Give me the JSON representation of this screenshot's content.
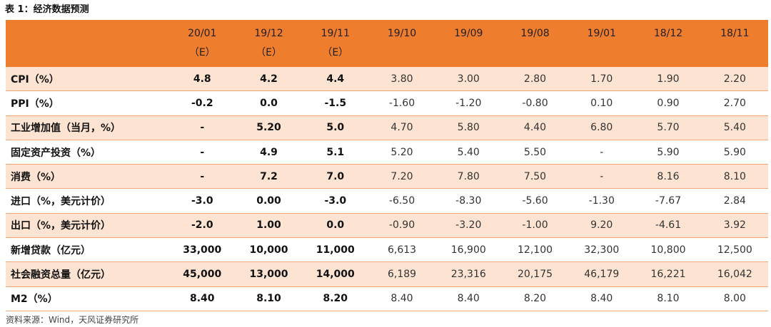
{
  "title": "表 1：经济数据预测",
  "header": {
    "corner": "",
    "columns": [
      {
        "period": "20/01",
        "note": "（E）"
      },
      {
        "period": "19/12",
        "note": "（E）"
      },
      {
        "period": "19/11",
        "note": "（E）"
      },
      {
        "period": "19/10",
        "note": ""
      },
      {
        "period": "19/09",
        "note": ""
      },
      {
        "period": "19/08",
        "note": ""
      },
      {
        "period": "19/01",
        "note": ""
      },
      {
        "period": "18/12",
        "note": ""
      },
      {
        "period": "18/11",
        "note": ""
      }
    ]
  },
  "forecast_column_count": 3,
  "rows": [
    {
      "label": "CPI（%）",
      "values": [
        "4.8",
        "4.2",
        "4.4",
        "3.80",
        "3.00",
        "2.80",
        "1.70",
        "1.90",
        "2.20"
      ]
    },
    {
      "label": "PPI（%）",
      "values": [
        "-0.2",
        "0.0",
        "-1.5",
        "-1.60",
        "-1.20",
        "-0.80",
        "0.10",
        "0.90",
        "2.70"
      ]
    },
    {
      "label": "工业增加值（当月，%）",
      "values": [
        "-",
        "5.20",
        "5.0",
        "4.70",
        "5.80",
        "4.40",
        "6.80",
        "5.70",
        "5.40"
      ]
    },
    {
      "label": "固定资产投资（%）",
      "values": [
        "-",
        "4.9",
        "5.1",
        "5.20",
        "5.40",
        "5.50",
        "-",
        "5.90",
        "5.90"
      ]
    },
    {
      "label": "消费（%）",
      "values": [
        "-",
        "7.2",
        "7.0",
        "7.20",
        "7.80",
        "7.50",
        "-",
        "8.16",
        "8.10"
      ]
    },
    {
      "label": "进口（%，美元计价）",
      "values": [
        "-3.0",
        "0.00",
        "-3.0",
        "-6.50",
        "-8.30",
        "-5.60",
        "-1.30",
        "-7.67",
        "2.84"
      ]
    },
    {
      "label": "出口（%，美元计价）",
      "values": [
        "-2.0",
        "1.00",
        "0.0",
        "-0.90",
        "-3.20",
        "-1.00",
        "9.20",
        "-4.61",
        "3.92"
      ]
    },
    {
      "label": "新增贷款（亿元）",
      "values": [
        "33,000",
        "10,000",
        "11,000",
        "6,613",
        "16,900",
        "12,100",
        "32,300",
        "10,800",
        "12,500"
      ]
    },
    {
      "label": "社会融资总量（亿元）",
      "values": [
        "45,000",
        "13,000",
        "14,000",
        "6,189",
        "23,316",
        "20,175",
        "46,179",
        "16,221",
        "16,042"
      ]
    },
    {
      "label": "M2（%）",
      "values": [
        "8.40",
        "8.10",
        "8.20",
        "8.40",
        "8.40",
        "8.20",
        "8.40",
        "8.10",
        "8.00"
      ]
    }
  ],
  "source": "资料来源：Wind，天风证券研究所",
  "colors": {
    "header_bg": "#ef7d2e",
    "shade_bg": "#fde4d2",
    "rule": "#f0a775"
  }
}
